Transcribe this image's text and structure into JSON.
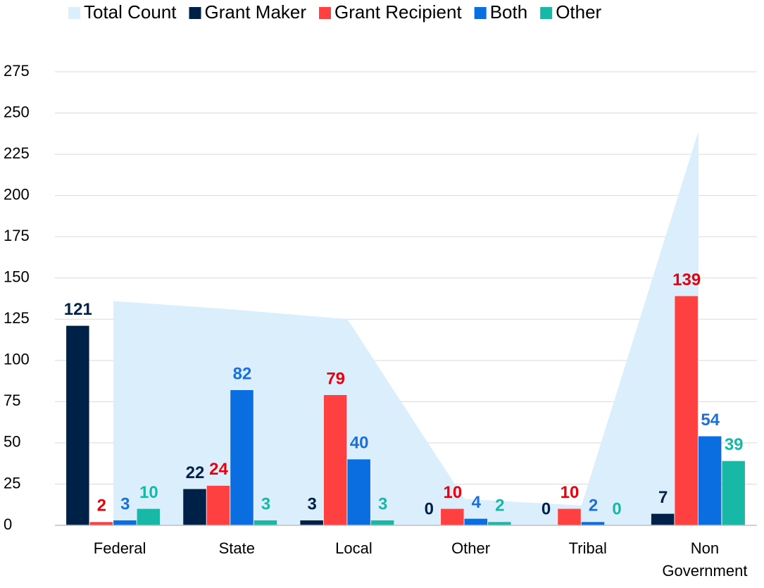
{
  "chart_data": {
    "type": "bar",
    "categories": [
      "Federal",
      "State",
      "Local",
      "Other",
      "Tribal",
      "Non Government"
    ],
    "area": {
      "name": "Total Count",
      "color": "#dbeefc",
      "values": [
        136,
        131,
        125,
        16,
        12,
        239
      ]
    },
    "series": [
      {
        "name": "Grant Maker",
        "color": "#002147",
        "label_color": "#002147",
        "values": [
          121,
          22,
          3,
          0,
          0,
          7
        ]
      },
      {
        "name": "Grant Recipient",
        "color": "#ff4040",
        "label_color": "#e8000f",
        "values": [
          2,
          24,
          79,
          10,
          10,
          139
        ]
      },
      {
        "name": "Both",
        "color": "#0a6ee0",
        "label_color": "#1a70d6",
        "values": [
          3,
          82,
          40,
          4,
          2,
          54
        ]
      },
      {
        "name": "Other",
        "color": "#17b8a6",
        "label_color": "#17b8a6",
        "values": [
          10,
          3,
          3,
          2,
          0,
          39
        ]
      }
    ],
    "ylim": [
      0,
      275
    ],
    "yticks": [
      0,
      25,
      50,
      75,
      100,
      125,
      150,
      175,
      200,
      225,
      250,
      275
    ],
    "grid": true,
    "legend": "top"
  }
}
